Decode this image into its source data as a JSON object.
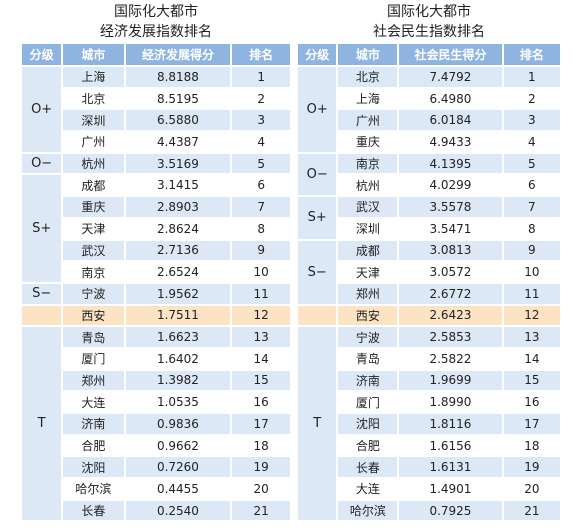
{
  "tables": [
    {
      "title": [
        "国际化大都市",
        "经济发展指数排名"
      ],
      "headers": [
        "分级",
        "城市",
        "经济发展得分",
        "排名"
      ],
      "groups": [
        {
          "grade": "O+",
          "rows": [
            [
              "上海",
              "8.8188",
              1
            ],
            [
              "北京",
              "8.5195",
              2
            ],
            [
              "深圳",
              "6.5880",
              3
            ],
            [
              "广州",
              "4.4387",
              4
            ]
          ]
        },
        {
          "grade": "O−",
          "rows": [
            [
              "杭州",
              "3.5169",
              5
            ]
          ]
        },
        {
          "grade": "S+",
          "rows": [
            [
              "成都",
              "3.1415",
              6
            ],
            [
              "重庆",
              "2.8903",
              7
            ],
            [
              "天津",
              "2.8624",
              8
            ],
            [
              "武汉",
              "2.7136",
              9
            ],
            [
              "南京",
              "2.6524",
              10
            ]
          ]
        },
        {
          "grade": "S−",
          "rows": [
            [
              "宁波",
              "1.9562",
              11
            ]
          ]
        },
        {
          "highlight": true,
          "rows": [
            [
              "西安",
              "1.7511",
              12
            ]
          ]
        },
        {
          "grade": "T",
          "rows": [
            [
              "青岛",
              "1.6623",
              13
            ],
            [
              "厦门",
              "1.6402",
              14
            ],
            [
              "郑州",
              "1.3982",
              15
            ],
            [
              "大连",
              "1.0535",
              16
            ],
            [
              "济南",
              "0.9836",
              17
            ],
            [
              "合肥",
              "0.9662",
              18
            ],
            [
              "沈阳",
              "0.7260",
              19
            ],
            [
              "哈尔滨",
              "0.4455",
              20
            ],
            [
              "长春",
              "0.2540",
              21
            ]
          ]
        }
      ]
    },
    {
      "title": [
        "国际化大都市",
        "社会民生指数排名"
      ],
      "headers": [
        "分级",
        "城市",
        "社会民生得分",
        "排名"
      ],
      "groups": [
        {
          "grade": "O+",
          "rows": [
            [
              "北京",
              "7.4792",
              1
            ],
            [
              "上海",
              "6.4980",
              2
            ],
            [
              "广州",
              "6.0184",
              3
            ],
            [
              "重庆",
              "4.9433",
              4
            ]
          ]
        },
        {
          "grade": "O−",
          "rows": [
            [
              "南京",
              "4.1395",
              5
            ],
            [
              "杭州",
              "4.0299",
              6
            ]
          ]
        },
        {
          "grade": "S+",
          "rows": [
            [
              "武汉",
              "3.5578",
              7
            ],
            [
              "深圳",
              "3.5471",
              8
            ]
          ]
        },
        {
          "grade": "S−",
          "rows": [
            [
              "成都",
              "3.0813",
              9
            ],
            [
              "天津",
              "3.0572",
              10
            ],
            [
              "郑州",
              "2.6772",
              11
            ]
          ]
        },
        {
          "highlight": true,
          "rows": [
            [
              "西安",
              "2.6423",
              12
            ]
          ]
        },
        {
          "grade": "T",
          "rows": [
            [
              "宁波",
              "2.5853",
              13
            ],
            [
              "青岛",
              "2.5822",
              14
            ],
            [
              "济南",
              "1.9699",
              15
            ],
            [
              "厦门",
              "1.8990",
              16
            ],
            [
              "沈阳",
              "1.8116",
              17
            ],
            [
              "合肥",
              "1.6156",
              18
            ],
            [
              "长春",
              "1.6131",
              19
            ],
            [
              "大连",
              "1.4901",
              20
            ],
            [
              "哈尔滨",
              "0.7925",
              21
            ]
          ]
        }
      ]
    }
  ]
}
